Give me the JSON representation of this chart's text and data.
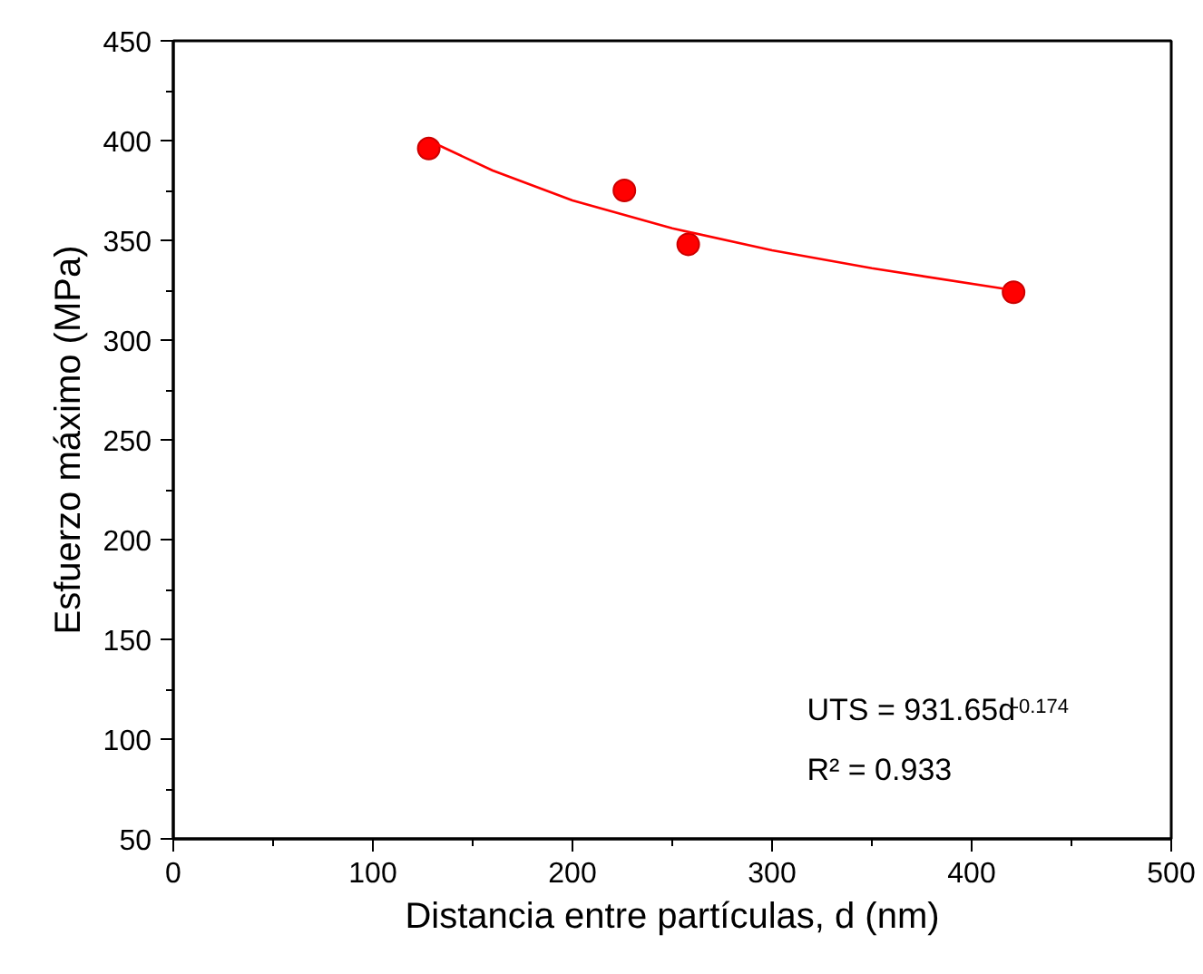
{
  "chart_data": {
    "type": "scatter",
    "xlabel": "Distancia entre partículas, d (nm)",
    "ylabel": "Esfuerzo máximo (MPa)",
    "xlim": [
      0,
      500
    ],
    "ylim": [
      50,
      450
    ],
    "xticks": [
      0,
      100,
      200,
      300,
      400,
      500
    ],
    "yticks": [
      50,
      100,
      150,
      200,
      250,
      300,
      350,
      400,
      450
    ],
    "grid": false,
    "marker": "circle",
    "series": [
      {
        "color": "#ff0000",
        "x": [
          128,
          226,
          258,
          421
        ],
        "values": [
          396,
          375,
          348,
          324
        ]
      },
      {
        "type": "line",
        "color": "#ff0000",
        "line_style": "solid",
        "marker": "none",
        "x": [
          128,
          160,
          200,
          250,
          300,
          350,
          421
        ],
        "values": [
          400,
          385,
          370,
          356,
          345,
          336,
          325
        ]
      }
    ],
    "annotations": [
      "UTS = 931.65d$^{-0.174}$",
      "R² = 0.933"
    ]
  }
}
